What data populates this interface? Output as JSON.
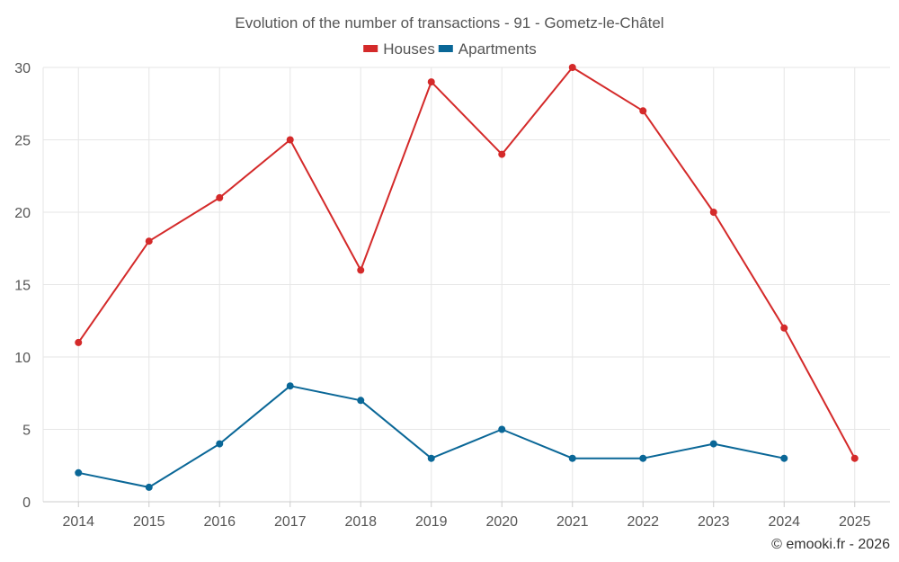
{
  "chart_data": {
    "type": "line",
    "title": "Evolution of the number of transactions - 91 - Gometz-le-Châtel",
    "categories": [
      "2014",
      "2015",
      "2016",
      "2017",
      "2018",
      "2019",
      "2020",
      "2021",
      "2022",
      "2023",
      "2024",
      "2025"
    ],
    "series": [
      {
        "name": "Houses",
        "color": "#d42a2a",
        "values": [
          11,
          18,
          21,
          25,
          16,
          29,
          24,
          30,
          27,
          20,
          12,
          3
        ]
      },
      {
        "name": "Apartments",
        "color": "#0a6797",
        "values": [
          2,
          1,
          4,
          8,
          7,
          3,
          5,
          3,
          3,
          4,
          3,
          null
        ]
      }
    ],
    "ylim": [
      0,
      30
    ],
    "yticks": [
      0,
      5,
      10,
      15,
      20,
      25,
      30
    ],
    "grid": true,
    "legend": "top-center",
    "xlabel": "",
    "ylabel": ""
  },
  "credit": "© emooki.fr - 2026"
}
